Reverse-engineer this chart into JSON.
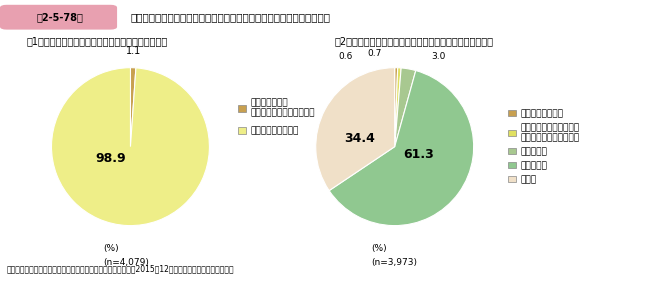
{
  "title_box": "第2-5-78図",
  "title_main": "中小企業のクラウドファンディングによる資金調達の経験と今後の意向",
  "subtitle1": "（1）クラウドファンディングによる資金調達の経験",
  "subtitle2": "（2）クラウドファンディングによる資金調達の今後の意向",
  "pie1_values": [
    1.1,
    98.9
  ],
  "pie1_colors": [
    "#c8a050",
    "#eeee88"
  ],
  "pie1_legend": [
    "利用している、\n過去に利用したことがある",
    "利用したことがない"
  ],
  "pie1_pct": "(%)",
  "pie1_n": "(n=4,079)",
  "pie2_values": [
    0.6,
    0.7,
    3.0,
    61.3,
    34.4
  ],
  "pie2_colors": [
    "#c8a050",
    "#e0e060",
    "#a8c890",
    "#90c890",
    "#f0e0c8"
  ],
  "pie2_legend": [
    "積極的に利用する",
    "金融機関からの借入の状\n況次第で利用を検討する",
    "利用しない",
    "分からない",
    "その他"
  ],
  "pie2_pct": "(%)",
  "pie2_n": "(n=3,973)",
  "source": "資料：中小企業庁委託「中小企業の資金調達に関する調査」（2015年12月、みずほ総合研究所（株））",
  "header_bg": "#e8a0b0",
  "bg_color": "#ffffff"
}
